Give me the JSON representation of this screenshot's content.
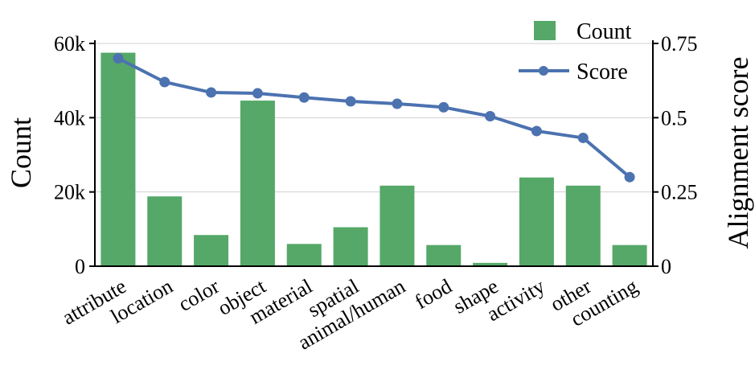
{
  "chart_data": {
    "type": "bar",
    "categories": [
      "attribute",
      "location",
      "color",
      "object",
      "material",
      "spatial",
      "animal/human",
      "food",
      "shape",
      "activity",
      "other",
      "counting"
    ],
    "series": [
      {
        "name": "Count",
        "type": "bar",
        "axis": "left",
        "values": [
          57500,
          18800,
          8400,
          44600,
          6000,
          10500,
          21700,
          5700,
          900,
          23900,
          21700,
          5700
        ]
      },
      {
        "name": "Score",
        "type": "line",
        "axis": "right",
        "values": [
          0.7,
          0.62,
          0.585,
          0.582,
          0.568,
          0.555,
          0.547,
          0.535,
          0.505,
          0.455,
          0.432,
          0.3
        ]
      }
    ],
    "ylabel": "Count",
    "ylabel_right": "Alignment score",
    "ylim": [
      0,
      60000
    ],
    "ylim_right": [
      0,
      0.75
    ],
    "yticks": [
      "0",
      "20k",
      "40k",
      "60k"
    ],
    "yticks_right": [
      "0",
      "0.25",
      "0.5",
      "0.75"
    ],
    "grid": "horizontal",
    "legend": "top-right",
    "colors": {
      "bar": "#55a868",
      "line": "#4c72b0"
    }
  }
}
